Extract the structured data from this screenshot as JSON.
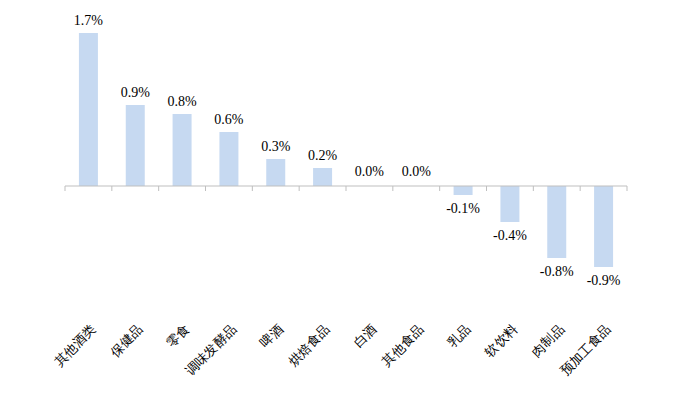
{
  "chart_data": {
    "type": "bar",
    "categories": [
      "其他酒类",
      "保健品",
      "零食",
      "调味发酵品",
      "啤酒",
      "烘焙食品",
      "白酒",
      "其他食品",
      "乳品",
      "软饮料",
      "肉制品",
      "预加工食品"
    ],
    "values": [
      1.7,
      0.9,
      0.8,
      0.6,
      0.3,
      0.2,
      0.0,
      0.0,
      -0.1,
      -0.4,
      -0.8,
      -0.9
    ],
    "value_labels": [
      "1.7%",
      "0.9%",
      "0.8%",
      "0.6%",
      "0.3%",
      "0.2%",
      "0.0%",
      "0.0%",
      "-0.1%",
      "-0.4%",
      "-0.8%",
      "-0.9%"
    ],
    "color": "#c6d9f1",
    "ylim": [
      -0.9,
      1.7
    ],
    "data_labels": true,
    "tick_labels": "x",
    "grid": false
  }
}
